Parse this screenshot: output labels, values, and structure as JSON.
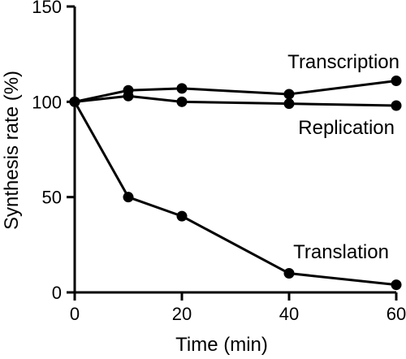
{
  "chart_data": {
    "type": "line",
    "xlabel": "Time (min)",
    "ylabel": "Synthesis rate (%)",
    "xlim": [
      0,
      60
    ],
    "ylim": [
      0,
      150
    ],
    "x_ticks": [
      0,
      20,
      40,
      60
    ],
    "y_ticks": [
      0,
      50,
      100,
      150
    ],
    "grid": false,
    "legend": "none",
    "series": [
      {
        "name": "Transcription",
        "x": [
          0,
          10,
          20,
          40,
          60
        ],
        "values": [
          100,
          106,
          107,
          104,
          111
        ]
      },
      {
        "name": "Replication",
        "x": [
          0,
          10,
          20,
          40,
          60
        ],
        "values": [
          100,
          103,
          100,
          99,
          98
        ]
      },
      {
        "name": "Translation",
        "x": [
          0,
          10,
          20,
          40,
          60
        ],
        "values": [
          100,
          50,
          40,
          10,
          4
        ]
      }
    ]
  }
}
